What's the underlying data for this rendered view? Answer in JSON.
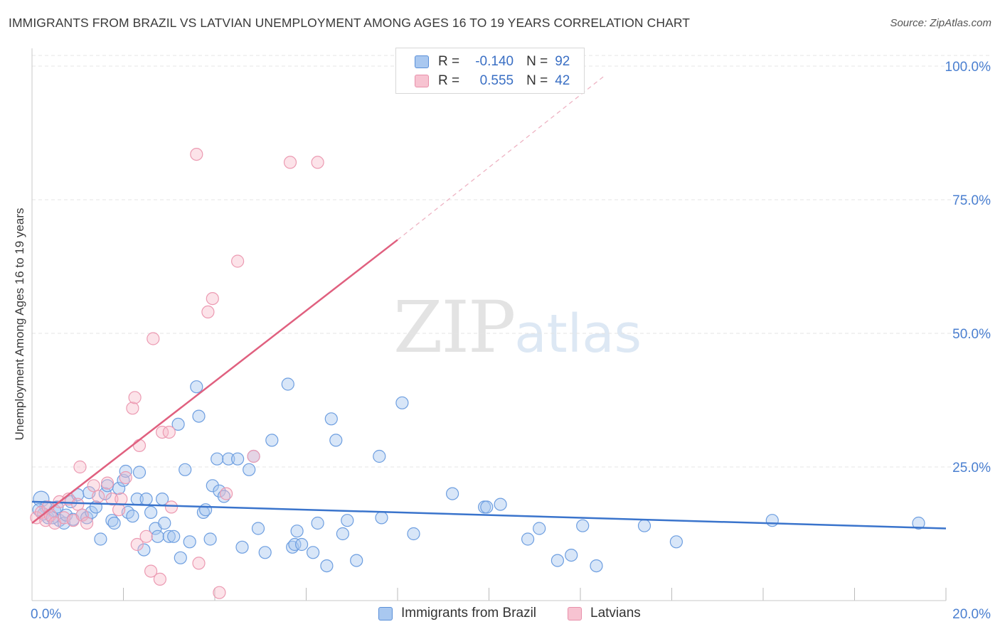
{
  "title": "IMMIGRANTS FROM BRAZIL VS LATVIAN UNEMPLOYMENT AMONG AGES 16 TO 19 YEARS CORRELATION CHART",
  "source": "Source: ZipAtlas.com",
  "watermark": {
    "zip": "ZIP",
    "atlas": "atlas"
  },
  "colors": {
    "blue": "#3a74cc",
    "blue_fill": "#a9c8f0",
    "pink": "#e0607f",
    "pink_fill": "#f7b8c9",
    "tick_text": "#4a7fd0",
    "grid": "#e4e4e4"
  },
  "legend": {
    "r_label": "R =",
    "n_label": "N =",
    "series": [
      {
        "name": "Immigrants from Brazil",
        "r": "-0.140",
        "n": "92"
      },
      {
        "name": "Latvians",
        "r": "0.555",
        "n": "42"
      }
    ]
  },
  "chart_data": {
    "type": "scatter",
    "title": "IMMIGRANTS FROM BRAZIL VS LATVIAN UNEMPLOYMENT AMONG AGES 16 TO 19 YEARS CORRELATION CHART",
    "xlabel": "",
    "ylabel": "Unemployment Among Ages 16 to 19 years",
    "xlim": [
      0,
      20
    ],
    "ylim": [
      0,
      102
    ],
    "x_tick_labels": [
      {
        "value": 0,
        "label": "0.0%"
      },
      {
        "value": 20,
        "label": "20.0%"
      }
    ],
    "y_tick_labels": [
      {
        "value": 25,
        "label": "25.0%"
      },
      {
        "value": 50,
        "label": "50.0%"
      },
      {
        "value": 75,
        "label": "75.0%"
      },
      {
        "value": 100,
        "label": "100.0%"
      }
    ],
    "grid": true,
    "legend_position": "top-center",
    "series": [
      {
        "name": "Immigrants from Brazil",
        "color": "blue",
        "trend": {
          "x0": 0,
          "y0": 18.5,
          "x1": 20,
          "y1": 13.5
        },
        "points": [
          [
            0.2,
            19.0
          ],
          [
            0.3,
            17.5
          ],
          [
            0.25,
            16.2
          ],
          [
            0.35,
            15.5
          ],
          [
            0.5,
            16.8
          ],
          [
            0.6,
            15.0
          ],
          [
            0.7,
            14.5
          ],
          [
            0.75,
            16.0
          ],
          [
            0.85,
            18.5
          ],
          [
            0.9,
            15.2
          ],
          [
            1.0,
            19.8
          ],
          [
            1.1,
            16.0
          ],
          [
            1.2,
            15.5
          ],
          [
            1.25,
            20.2
          ],
          [
            1.3,
            16.5
          ],
          [
            1.4,
            17.5
          ],
          [
            1.5,
            11.5
          ],
          [
            1.6,
            20.0
          ],
          [
            1.65,
            21.5
          ],
          [
            1.75,
            15.0
          ],
          [
            1.8,
            14.5
          ],
          [
            1.9,
            21.0
          ],
          [
            2.0,
            22.5
          ],
          [
            2.05,
            24.2
          ],
          [
            2.1,
            16.5
          ],
          [
            2.2,
            15.8
          ],
          [
            2.3,
            19.0
          ],
          [
            2.35,
            24.0
          ],
          [
            2.45,
            9.5
          ],
          [
            2.5,
            19.0
          ],
          [
            2.6,
            16.5
          ],
          [
            2.7,
            13.5
          ],
          [
            2.75,
            12.0
          ],
          [
            2.85,
            19.0
          ],
          [
            2.9,
            14.5
          ],
          [
            3.0,
            12.0
          ],
          [
            3.1,
            12.0
          ],
          [
            3.2,
            33.0
          ],
          [
            3.25,
            8.0
          ],
          [
            3.35,
            24.5
          ],
          [
            3.45,
            11.0
          ],
          [
            3.6,
            40.0
          ],
          [
            3.65,
            34.5
          ],
          [
            3.75,
            16.5
          ],
          [
            3.8,
            17.0
          ],
          [
            3.9,
            11.5
          ],
          [
            3.95,
            21.5
          ],
          [
            4.05,
            26.5
          ],
          [
            4.1,
            20.5
          ],
          [
            4.2,
            19.5
          ],
          [
            4.3,
            26.5
          ],
          [
            4.5,
            26.5
          ],
          [
            4.6,
            10.0
          ],
          [
            4.75,
            24.5
          ],
          [
            4.85,
            27.0
          ],
          [
            4.95,
            13.5
          ],
          [
            5.1,
            9.0
          ],
          [
            5.25,
            30.0
          ],
          [
            5.6,
            40.5
          ],
          [
            5.7,
            10.0
          ],
          [
            5.75,
            10.5
          ],
          [
            5.8,
            13.0
          ],
          [
            5.9,
            10.5
          ],
          [
            6.15,
            9.0
          ],
          [
            6.25,
            14.5
          ],
          [
            6.45,
            6.5
          ],
          [
            6.55,
            34.0
          ],
          [
            6.65,
            30.0
          ],
          [
            6.8,
            12.5
          ],
          [
            6.9,
            15.0
          ],
          [
            7.1,
            7.5
          ],
          [
            7.6,
            27.0
          ],
          [
            7.65,
            15.5
          ],
          [
            8.1,
            37.0
          ],
          [
            8.35,
            12.5
          ],
          [
            9.2,
            20.0
          ],
          [
            9.9,
            17.5
          ],
          [
            9.95,
            17.5
          ],
          [
            10.25,
            18.0
          ],
          [
            10.85,
            11.5
          ],
          [
            11.1,
            13.5
          ],
          [
            11.5,
            7.5
          ],
          [
            11.8,
            8.5
          ],
          [
            12.05,
            14.0
          ],
          [
            12.35,
            6.5
          ],
          [
            13.4,
            14.0
          ],
          [
            14.1,
            11.0
          ],
          [
            16.2,
            15.0
          ],
          [
            19.4,
            14.5
          ],
          [
            0.15,
            17.0
          ],
          [
            0.45,
            15.5
          ],
          [
            0.55,
            17.5
          ]
        ]
      },
      {
        "name": "Latvians",
        "color": "pink",
        "trend": {
          "x0": 0,
          "y0": 14.5,
          "x1": 8,
          "y1": 67.5,
          "dashed_to": {
            "x": 12.5,
            "y": 98.0
          }
        },
        "points": [
          [
            0.1,
            15.5
          ],
          [
            0.2,
            16.5
          ],
          [
            0.3,
            15.0
          ],
          [
            0.35,
            17.5
          ],
          [
            0.4,
            16.0
          ],
          [
            0.5,
            14.5
          ],
          [
            0.6,
            18.5
          ],
          [
            0.7,
            15.5
          ],
          [
            0.8,
            19.0
          ],
          [
            0.9,
            15.0
          ],
          [
            1.0,
            18.0
          ],
          [
            1.05,
            25.0
          ],
          [
            1.1,
            16.0
          ],
          [
            1.2,
            14.5
          ],
          [
            1.35,
            21.5
          ],
          [
            1.45,
            19.5
          ],
          [
            1.65,
            22.0
          ],
          [
            1.75,
            19.0
          ],
          [
            1.9,
            17.0
          ],
          [
            1.95,
            19.0
          ],
          [
            2.05,
            23.0
          ],
          [
            2.2,
            36.0
          ],
          [
            2.25,
            38.0
          ],
          [
            2.3,
            10.5
          ],
          [
            2.35,
            29.0
          ],
          [
            2.5,
            12.0
          ],
          [
            2.6,
            5.5
          ],
          [
            2.65,
            49.0
          ],
          [
            2.8,
            4.0
          ],
          [
            2.85,
            31.5
          ],
          [
            3.0,
            31.5
          ],
          [
            3.05,
            17.5
          ],
          [
            3.6,
            83.5
          ],
          [
            3.65,
            7.0
          ],
          [
            3.85,
            54.0
          ],
          [
            3.95,
            56.5
          ],
          [
            4.1,
            1.5
          ],
          [
            4.25,
            20.0
          ],
          [
            4.5,
            63.5
          ],
          [
            4.85,
            27.0
          ],
          [
            5.65,
            82.0
          ],
          [
            6.25,
            82.0
          ]
        ]
      }
    ]
  }
}
